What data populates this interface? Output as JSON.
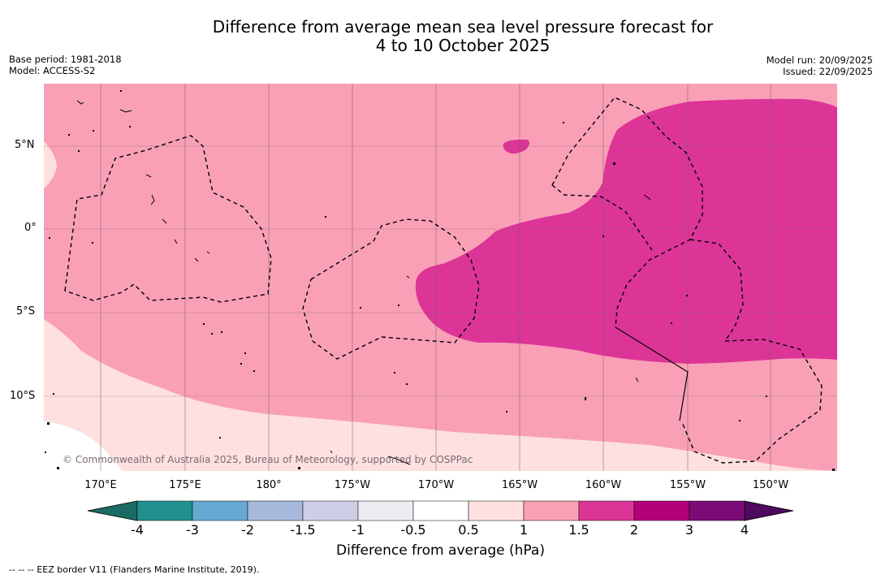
{
  "title": {
    "line1": "Difference from average mean sea level pressure forecast for",
    "line2": "4 to 10 October 2025"
  },
  "meta_left": {
    "base_period": "Base period: 1981-2018",
    "model": "Model: ACCESS-S2"
  },
  "meta_right": {
    "model_run": "Model run: 20/09/2025",
    "issued": "Issued: 22/09/2025"
  },
  "lat_labels": [
    "5°N",
    "0°",
    "5°S",
    "10°S"
  ],
  "lon_labels": [
    "170°E",
    "175°E",
    "180°",
    "175°W",
    "170°W",
    "165°W",
    "160°W",
    "155°W",
    "150°W"
  ],
  "copyright": "© Commonwealth of Australia 2025, Bureau of Meteorology, supported by COSPPac",
  "colorbar": {
    "title": "Difference from average (hPa)",
    "ticks": [
      "-4",
      "-3",
      "-2",
      "-1.5",
      "-1",
      "-0.5",
      "0.5",
      "1",
      "1.5",
      "2",
      "3",
      "4"
    ],
    "colors": [
      "#1a6b63",
      "#21908f",
      "#66a9d2",
      "#a6b9dc",
      "#cecfe6",
      "#efebf2",
      "#ffffff",
      "#fde0df",
      "#f9a0b6",
      "#dc3597",
      "#b3007a",
      "#7b0c77",
      "#4d0a5e"
    ]
  },
  "legend_colors": {
    "band_0_5_1": "#fde0df",
    "band_1_1_5": "#f9a0b6",
    "band_1_5_2": "#dc3597"
  },
  "footnote": "--  --  -- EEZ border V11 (Flanders Marine Institute, 2019)."
}
